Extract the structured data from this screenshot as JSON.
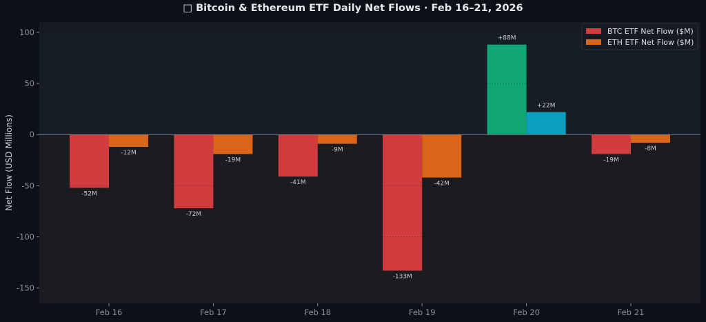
{
  "chart_data": {
    "type": "bar",
    "title": "□ Bitcoin & Ethereum ETF Daily Net Flows · Feb 16–21, 2026",
    "xlabel": "",
    "ylabel": "Net Flow (USD Millions)",
    "ylim": [
      -165,
      110
    ],
    "yticks": [
      100,
      50,
      0,
      -50,
      -100,
      -150
    ],
    "grid": true,
    "legend_position": "top-right",
    "categories": [
      "Feb 16",
      "Feb 17",
      "Feb 18",
      "Feb 19",
      "Feb 20",
      "Feb 21"
    ],
    "series": [
      {
        "name": "BTC ETF Net Flow ($M)",
        "values": [
          -52,
          -72,
          -41,
          -133,
          88,
          -19
        ],
        "data_labels": [
          "-52M",
          "-72M",
          "-41M",
          "-133M",
          "+88M",
          "-19M"
        ],
        "color_negative": "#d13c3f",
        "color_positive": "#10a574"
      },
      {
        "name": "ETH ETF Net Flow ($M)",
        "values": [
          -12,
          -19,
          -9,
          -42,
          22,
          -8
        ],
        "data_labels": [
          "-12M",
          "-19M",
          "-9M",
          "-42M",
          "+22M",
          "-8M"
        ],
        "color_negative": "#d9651b",
        "color_positive": "#0aa0bd"
      }
    ]
  }
}
